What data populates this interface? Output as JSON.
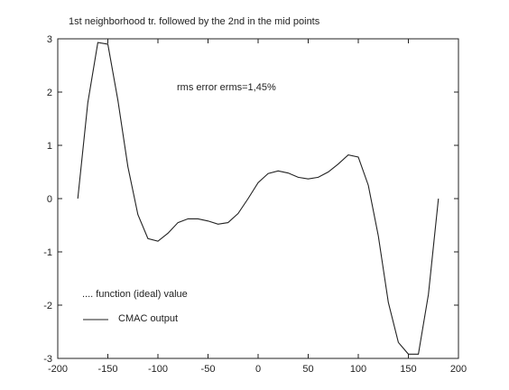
{
  "chart_data": {
    "type": "line",
    "title": "1st neighborhood tr. followed by the 2nd in the mid points",
    "annotation": "rms error erms=1,45%",
    "xlabel": "",
    "ylabel": "",
    "xlim": [
      -200,
      200
    ],
    "ylim": [
      -3,
      3
    ],
    "xticks": [
      -200,
      -150,
      -100,
      -50,
      0,
      50,
      100,
      150,
      200
    ],
    "yticks": [
      -3,
      -2,
      -1,
      0,
      1,
      2,
      3
    ],
    "xtick_labels": [
      "-200",
      "-150",
      "-100",
      "-50",
      "0",
      "50",
      "100",
      "150",
      "200"
    ],
    "ytick_labels": [
      "-3",
      "-2",
      "-1",
      "0",
      "1",
      "2",
      "3"
    ],
    "grid": false,
    "legend": [
      {
        "label": ".... function (ideal) value",
        "style": "dotted"
      },
      {
        "label": "CMAC output",
        "style": "solid"
      }
    ],
    "series": [
      {
        "name": "CMAC output",
        "x": [
          -180,
          -170,
          -160,
          -150,
          -140,
          -130,
          -120,
          -110,
          -100,
          -90,
          -80,
          -70,
          -60,
          -50,
          -40,
          -30,
          -20,
          -10,
          0,
          10,
          20,
          30,
          40,
          50,
          60,
          70,
          80,
          90,
          100,
          110,
          120,
          130,
          140,
          150,
          160,
          170,
          180
        ],
        "y": [
          0.0,
          1.8,
          2.93,
          2.9,
          1.85,
          0.6,
          -0.3,
          -0.75,
          -0.8,
          -0.65,
          -0.45,
          -0.38,
          -0.38,
          -0.42,
          -0.48,
          -0.45,
          -0.28,
          0.0,
          0.3,
          0.47,
          0.52,
          0.48,
          0.4,
          0.37,
          0.4,
          0.5,
          0.65,
          0.82,
          0.78,
          0.25,
          -0.7,
          -1.95,
          -2.7,
          -2.92,
          -2.92,
          -1.8,
          0.0
        ]
      }
    ]
  }
}
